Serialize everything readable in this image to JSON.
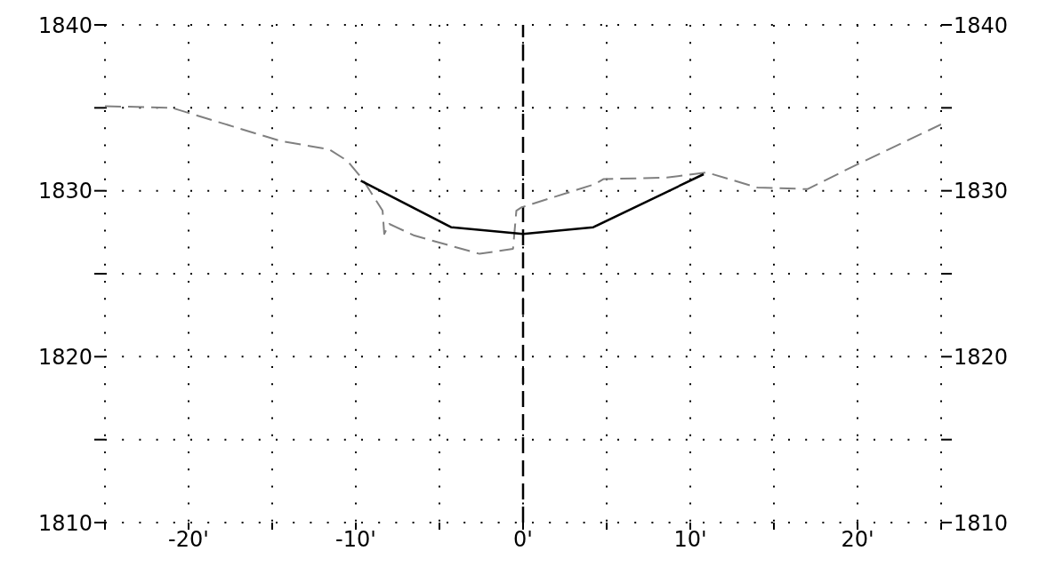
{
  "chart_data": {
    "type": "line",
    "xlim": [
      -25,
      25
    ],
    "xticks": [
      {
        "value": -25,
        "label": null
      },
      {
        "value": -20,
        "label": "-20'"
      },
      {
        "value": -15,
        "label": null
      },
      {
        "value": -10,
        "label": "-10'"
      },
      {
        "value": -5,
        "label": null
      },
      {
        "value": 0,
        "label": "0'"
      },
      {
        "value": 5,
        "label": null
      },
      {
        "value": 10,
        "label": "10'"
      },
      {
        "value": 15,
        "label": null
      },
      {
        "value": 20,
        "label": "20'"
      },
      {
        "value": 25,
        "label": null
      }
    ],
    "ylim": [
      1810,
      1840
    ],
    "yticks": [
      1810,
      {
        "value": 1815,
        "label": null
      },
      1820,
      {
        "value": 1825,
        "label": null
      },
      1830,
      {
        "value": 1835,
        "label": null
      },
      1840
    ],
    "y2lim": [
      1810,
      1840
    ],
    "y2ticks": [
      1810,
      {
        "value": 1815,
        "label": null
      },
      1820,
      {
        "value": 1825,
        "label": null
      },
      1830,
      {
        "value": 1835,
        "label": null
      },
      1840
    ],
    "grid": true,
    "marker": "none",
    "series": [
      {
        "color": "#808080",
        "line_style": "dashed",
        "x": [
          -25,
          -21,
          -14.5,
          -11.6,
          -10.5,
          -9.6,
          -8.4,
          -8.3,
          -8,
          -6.5,
          -2.6,
          -0.6,
          -0.4,
          -0.1,
          4.3,
          4.8,
          8.6,
          11,
          14,
          17,
          20,
          25
        ],
        "values": [
          1835.1,
          1835,
          1833,
          1832.5,
          1831.8,
          1830.7,
          1828.8,
          1827.4,
          1828,
          1827.3,
          1826.2,
          1826.5,
          1828.8,
          1829,
          1830.4,
          1830.7,
          1830.8,
          1831.1,
          1830.2,
          1830.1,
          1831.6,
          1834
        ]
      },
      {
        "color": "#000000",
        "line_style": "solid",
        "x": [
          -9.7,
          -4.3,
          0,
          4.2,
          10.8
        ],
        "values": [
          1830.6,
          1827.8,
          1827.4,
          1827.8,
          1831
        ]
      }
    ],
    "ref_lines": [
      {
        "axis": "x",
        "value": 0,
        "color": "#000000",
        "line_style": "dashed"
      }
    ]
  }
}
